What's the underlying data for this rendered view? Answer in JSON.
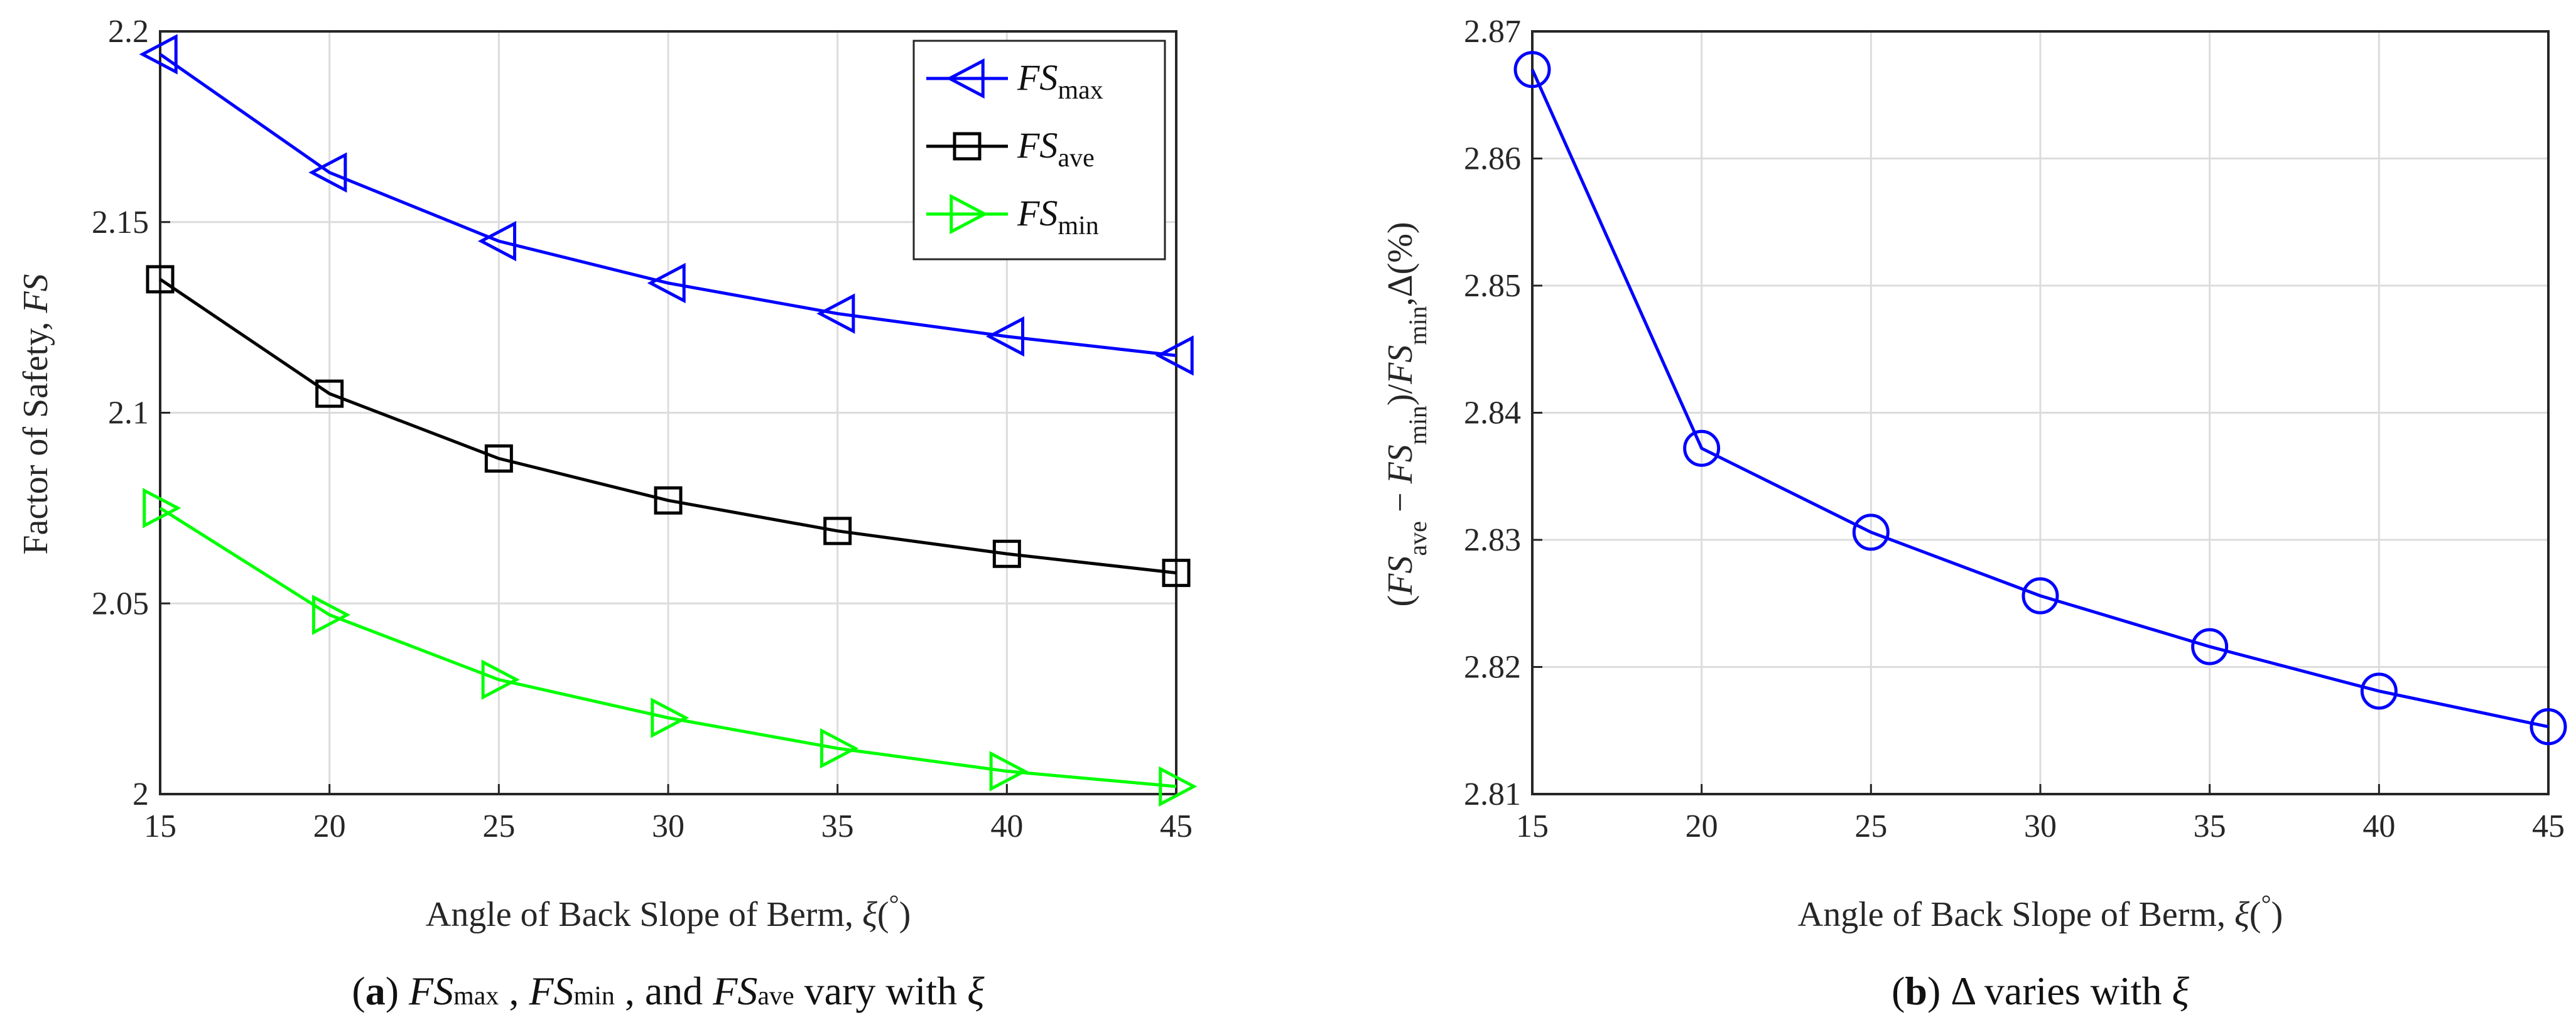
{
  "chart_data": [
    {
      "type": "line",
      "panel": "a",
      "x": [
        15,
        20,
        25,
        30,
        35,
        40,
        45
      ],
      "series": [
        {
          "name": "FS_max",
          "label_base": "FS",
          "label_sub": "max",
          "color": "#0000ff",
          "marker": "triangle-left",
          "values": [
            2.194,
            2.163,
            2.145,
            2.134,
            2.126,
            2.12,
            2.115
          ]
        },
        {
          "name": "FS_ave",
          "label_base": "FS",
          "label_sub": "ave",
          "color": "#000000",
          "marker": "square",
          "values": [
            2.135,
            2.105,
            2.088,
            2.077,
            2.069,
            2.063,
            2.058
          ]
        },
        {
          "name": "FS_min",
          "label_base": "FS",
          "label_sub": "min",
          "color": "#00ff00",
          "marker": "triangle-right",
          "values": [
            2.075,
            2.047,
            2.03,
            2.02,
            2.012,
            2.006,
            2.002
          ]
        }
      ],
      "xlim": [
        15,
        45
      ],
      "ylim": [
        2.0,
        2.2
      ],
      "xticks": [
        "15",
        "20",
        "25",
        "30",
        "35",
        "40",
        "45"
      ],
      "yticks": [
        "2",
        "2.05",
        "2.1",
        "2.15",
        "2.2"
      ],
      "xlabel": "Angle of Back Slope of Berm, ξ(°)",
      "ylabel": "Factor of Safety, FS",
      "legend_position": "top-right",
      "grid": true
    },
    {
      "type": "line",
      "panel": "b",
      "x": [
        15,
        20,
        25,
        30,
        35,
        40,
        45
      ],
      "series": [
        {
          "name": "Delta",
          "color": "#0000ff",
          "marker": "circle",
          "values": [
            2.867,
            2.8372,
            2.8306,
            2.8256,
            2.8216,
            2.8181,
            2.8153
          ]
        }
      ],
      "xlim": [
        15,
        45
      ],
      "ylim": [
        2.81,
        2.87
      ],
      "xticks": [
        "15",
        "20",
        "25",
        "30",
        "35",
        "40",
        "45"
      ],
      "yticks": [
        "2.81",
        "2.82",
        "2.83",
        "2.84",
        "2.85",
        "2.86",
        "2.87"
      ],
      "xlabel": "Angle of Back Slope of Berm, ξ(°)",
      "ylabel": "(FSave − FSmin)/FSmin,Δ(%)",
      "grid": true
    }
  ],
  "captions": {
    "a": {
      "label": "a",
      "text_1": "FS",
      "sub_1": "max",
      "text_2": ", ",
      "t_fs2": "FS",
      "sub_2": "min",
      "text_3": ", and ",
      "t_fs3": "FS",
      "sub_3": "ave",
      "text_4": " vary with ",
      "xi": "ξ"
    },
    "b": {
      "label": "b",
      "text_1": "Δ varies with ",
      "xi": "ξ"
    }
  }
}
